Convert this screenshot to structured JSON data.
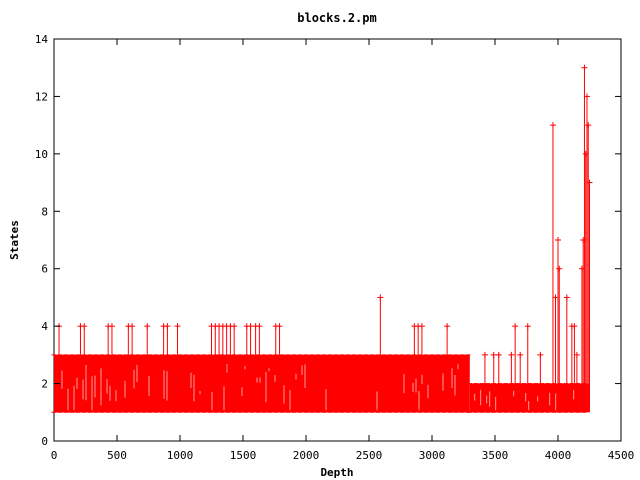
{
  "chart_data": {
    "type": "line",
    "title": "blocks.2.pm",
    "xlabel": "Depth",
    "ylabel": "States",
    "xlim": [
      0,
      4500
    ],
    "ylim": [
      0,
      14
    ],
    "x_ticks": [
      0,
      500,
      1000,
      1500,
      2000,
      2500,
      3000,
      3500,
      4000,
      4500
    ],
    "y_ticks": [
      0,
      2,
      4,
      6,
      8,
      10,
      12,
      14
    ],
    "grid": false,
    "legend": "none",
    "line_color": "#ff0000",
    "marker": "plus",
    "max_depth": 4250,
    "series": [
      {
        "style": "oscillating band between 1 and 3 states",
        "x_range": [
          0,
          3300
        ],
        "values": [
          1,
          3
        ]
      },
      {
        "style": "oscillating band between 1 and 2 states",
        "x_range": [
          3300,
          4250
        ],
        "values": [
          1,
          2
        ]
      },
      {
        "style": "spikes",
        "points": [
          {
            "x": 40,
            "y": 4
          },
          {
            "x": 210,
            "y": 4
          },
          {
            "x": 240,
            "y": 4
          },
          {
            "x": 430,
            "y": 4
          },
          {
            "x": 460,
            "y": 4
          },
          {
            "x": 590,
            "y": 4
          },
          {
            "x": 620,
            "y": 4
          },
          {
            "x": 740,
            "y": 4
          },
          {
            "x": 870,
            "y": 4
          },
          {
            "x": 900,
            "y": 4
          },
          {
            "x": 980,
            "y": 4
          },
          {
            "x": 1250,
            "y": 4
          },
          {
            "x": 1280,
            "y": 4
          },
          {
            "x": 1310,
            "y": 4
          },
          {
            "x": 1340,
            "y": 4
          },
          {
            "x": 1370,
            "y": 4
          },
          {
            "x": 1400,
            "y": 4
          },
          {
            "x": 1430,
            "y": 4
          },
          {
            "x": 1530,
            "y": 4
          },
          {
            "x": 1560,
            "y": 4
          },
          {
            "x": 1600,
            "y": 4
          },
          {
            "x": 1630,
            "y": 4
          },
          {
            "x": 1760,
            "y": 4
          },
          {
            "x": 1790,
            "y": 4
          },
          {
            "x": 2590,
            "y": 5
          },
          {
            "x": 2860,
            "y": 4
          },
          {
            "x": 2890,
            "y": 4
          },
          {
            "x": 2920,
            "y": 4
          },
          {
            "x": 3120,
            "y": 4
          },
          {
            "x": 3420,
            "y": 3
          },
          {
            "x": 3490,
            "y": 3
          },
          {
            "x": 3530,
            "y": 3
          },
          {
            "x": 3630,
            "y": 3
          },
          {
            "x": 3660,
            "y": 4
          },
          {
            "x": 3700,
            "y": 3
          },
          {
            "x": 3760,
            "y": 4
          },
          {
            "x": 3860,
            "y": 3
          },
          {
            "x": 3960,
            "y": 11
          },
          {
            "x": 3980,
            "y": 5
          },
          {
            "x": 4000,
            "y": 7
          },
          {
            "x": 4010,
            "y": 6
          },
          {
            "x": 4070,
            "y": 5
          },
          {
            "x": 4110,
            "y": 4
          },
          {
            "x": 4130,
            "y": 4
          },
          {
            "x": 4150,
            "y": 3
          },
          {
            "x": 4190,
            "y": 6
          },
          {
            "x": 4200,
            "y": 7
          },
          {
            "x": 4210,
            "y": 13
          },
          {
            "x": 4220,
            "y": 10
          },
          {
            "x": 4230,
            "y": 12
          },
          {
            "x": 4240,
            "y": 11
          },
          {
            "x": 4250,
            "y": 9
          }
        ]
      }
    ]
  }
}
